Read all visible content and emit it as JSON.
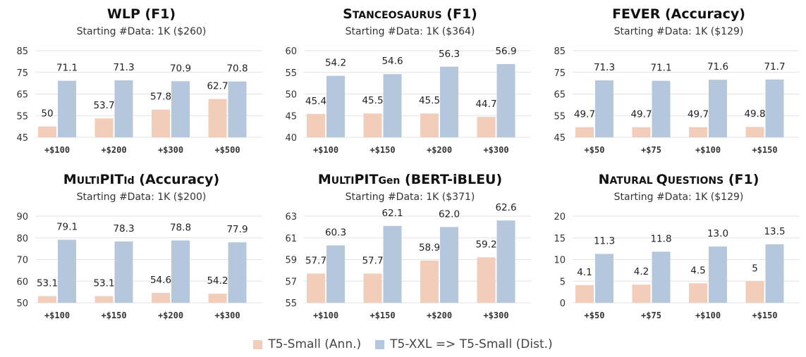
{
  "colors": {
    "ann": "#f2cdb9",
    "dist": "#b5c7dc",
    "grid": "#e3e3e3"
  },
  "legend": {
    "items": [
      {
        "label": "T5-Small (Ann.)",
        "color": "#f2cdb9"
      },
      {
        "label": "T5-XXL => T5-Small (Dist.)",
        "color": "#b5c7dc"
      }
    ]
  },
  "chart_data": [
    {
      "type": "bar",
      "title": "WLP (F1)",
      "title_parts": [
        {
          "text": "WLP",
          "small": false
        },
        {
          "text": " (F1)",
          "small": false
        }
      ],
      "subtitle": "Starting #Data: 1K ($260)",
      "categories": [
        "+$100",
        "+$200",
        "+$300",
        "+$500"
      ],
      "ylim": [
        45,
        85
      ],
      "yticks": [
        45,
        55,
        65,
        75,
        85
      ],
      "series": [
        {
          "key": "ann",
          "values": [
            50,
            53.7,
            57.8,
            62.7
          ],
          "labels": [
            "50",
            "53.7",
            "57.8",
            "62.7"
          ]
        },
        {
          "key": "dist",
          "values": [
            71.1,
            71.3,
            70.9,
            70.8
          ],
          "labels": [
            "71.1",
            "71.3",
            "70.9",
            "70.8"
          ]
        }
      ]
    },
    {
      "type": "bar",
      "title": "Stanceosaurus (F1)",
      "title_parts": [
        {
          "text": "S",
          "small": false
        },
        {
          "text": "TANCEOSAURUS",
          "small": true
        },
        {
          "text": " (F1)",
          "small": false
        }
      ],
      "subtitle": "Starting #Data: 1K ($364)",
      "categories": [
        "+$100",
        "+$150",
        "+$200",
        "+$300"
      ],
      "ylim": [
        40,
        60
      ],
      "yticks": [
        40,
        45,
        50,
        55,
        60
      ],
      "series": [
        {
          "key": "ann",
          "values": [
            45.4,
            45.5,
            45.5,
            44.7
          ],
          "labels": [
            "45.4",
            "45.5",
            "45.5",
            "44.7"
          ]
        },
        {
          "key": "dist",
          "values": [
            54.2,
            54.6,
            56.3,
            56.9
          ],
          "labels": [
            "54.2",
            "54.6",
            "56.3",
            "56.9"
          ]
        }
      ]
    },
    {
      "type": "bar",
      "title": "FEVER (Accuracy)",
      "title_parts": [
        {
          "text": "FEVER",
          "small": false
        },
        {
          "text": " (Accuracy)",
          "small": false
        }
      ],
      "subtitle": "Starting #Data: 1K ($129)",
      "categories": [
        "+$50",
        "+$75",
        "+$100",
        "+$150"
      ],
      "ylim": [
        45,
        85
      ],
      "yticks": [
        45,
        55,
        65,
        75,
        85
      ],
      "series": [
        {
          "key": "ann",
          "values": [
            49.7,
            49.7,
            49.7,
            49.8
          ],
          "labels": [
            "49.7",
            "49.7",
            "49.7",
            "49.8"
          ]
        },
        {
          "key": "dist",
          "values": [
            71.3,
            71.1,
            71.6,
            71.7
          ],
          "labels": [
            "71.3",
            "71.1",
            "71.6",
            "71.7"
          ]
        }
      ]
    },
    {
      "type": "bar",
      "title": "MultiPITId (Accuracy)",
      "title_parts": [
        {
          "text": "M",
          "small": false
        },
        {
          "text": "ULTI",
          "small": true
        },
        {
          "text": "PIT",
          "small": false
        },
        {
          "text": "Id",
          "small": true
        },
        {
          "text": " (Accuracy)",
          "small": false
        }
      ],
      "subtitle": "Starting #Data: 1K ($200)",
      "categories": [
        "+$100",
        "+$150",
        "+$200",
        "+$300"
      ],
      "ylim": [
        50,
        90
      ],
      "yticks": [
        50,
        60,
        70,
        80,
        90
      ],
      "series": [
        {
          "key": "ann",
          "values": [
            53.1,
            53.1,
            54.6,
            54.2
          ],
          "labels": [
            "53.1",
            "53.1",
            "54.6",
            "54.2"
          ]
        },
        {
          "key": "dist",
          "values": [
            79.1,
            78.3,
            78.8,
            77.9
          ],
          "labels": [
            "79.1",
            "78.3",
            "78.8",
            "77.9"
          ]
        }
      ]
    },
    {
      "type": "bar",
      "title": "MultiPITGen (BERT-iBLEU)",
      "title_parts": [
        {
          "text": "M",
          "small": false
        },
        {
          "text": "ULTI",
          "small": true
        },
        {
          "text": "PIT",
          "small": false
        },
        {
          "text": "Gen",
          "small": true
        },
        {
          "text": " (BERT-iBLEU)",
          "small": false
        }
      ],
      "subtitle": "Starting #Data: 1K ($371)",
      "categories": [
        "+$100",
        "+$150",
        "+$200",
        "+$300"
      ],
      "ylim": [
        55,
        63
      ],
      "yticks": [
        55,
        57,
        59,
        61,
        63
      ],
      "series": [
        {
          "key": "ann",
          "values": [
            57.7,
            57.7,
            58.9,
            59.2
          ],
          "labels": [
            "57.7",
            "57.7",
            "58.9",
            "59.2"
          ]
        },
        {
          "key": "dist",
          "values": [
            60.3,
            62.1,
            62.0,
            62.6
          ],
          "labels": [
            "60.3",
            "62.1",
            "62.0",
            "62.6"
          ]
        }
      ]
    },
    {
      "type": "bar",
      "title": "Natural Questions (F1)",
      "title_parts": [
        {
          "text": "N",
          "small": false
        },
        {
          "text": "ATURAL ",
          "small": true
        },
        {
          "text": "Q",
          "small": false
        },
        {
          "text": "UESTIONS",
          "small": true
        },
        {
          "text": " (F1)",
          "small": false
        }
      ],
      "subtitle": "Starting #Data: 1K ($129)",
      "categories": [
        "+$50",
        "+$75",
        "+$100",
        "+$150"
      ],
      "ylim": [
        0,
        20
      ],
      "yticks": [
        0,
        5,
        10,
        15,
        20
      ],
      "series": [
        {
          "key": "ann",
          "values": [
            4.1,
            4.2,
            4.5,
            5
          ],
          "labels": [
            "4.1",
            "4.2",
            "4.5",
            "5"
          ]
        },
        {
          "key": "dist",
          "values": [
            11.3,
            11.8,
            13.0,
            13.5
          ],
          "labels": [
            "11.3",
            "11.8",
            "13.0",
            "13.5"
          ]
        }
      ]
    }
  ]
}
